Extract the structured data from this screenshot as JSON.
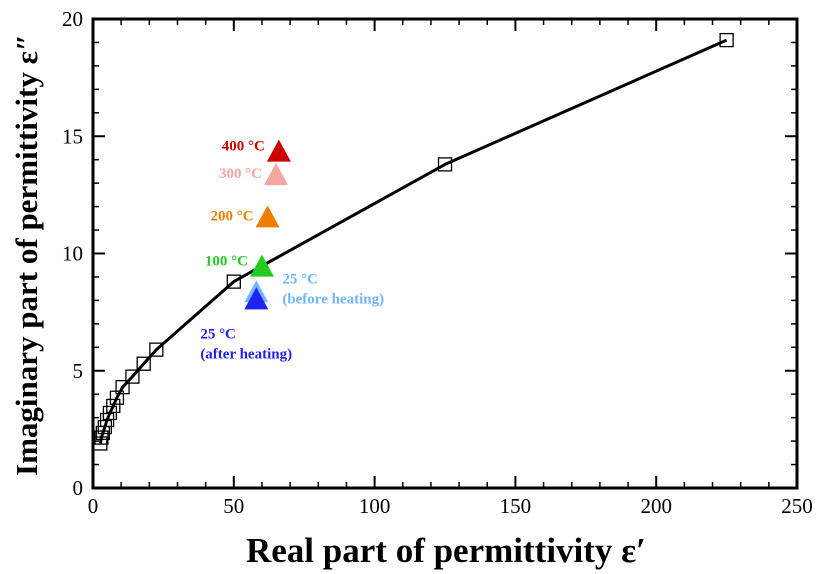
{
  "chart_data": {
    "type": "scatter",
    "xlabel": "Real part of permittivity ε′",
    "ylabel": "Imaginary part of permittivity ε″",
    "xlim": [
      0,
      250
    ],
    "ylim": [
      0,
      20
    ],
    "x_ticks": [
      0,
      50,
      100,
      150,
      200,
      250
    ],
    "y_ticks": [
      0,
      5,
      10,
      15,
      20
    ],
    "grid": false,
    "series": [
      {
        "marker": "open-square",
        "line": "solid",
        "color": "#000000",
        "points": [
          {
            "x": 2.6,
            "y": 1.9
          },
          {
            "x": 3.0,
            "y": 2.15
          },
          {
            "x": 3.5,
            "y": 2.35
          },
          {
            "x": 4.2,
            "y": 2.6
          },
          {
            "x": 5.0,
            "y": 2.9
          },
          {
            "x": 6.0,
            "y": 3.2
          },
          {
            "x": 7.2,
            "y": 3.5
          },
          {
            "x": 8.5,
            "y": 3.85
          },
          {
            "x": 10.5,
            "y": 4.3
          },
          {
            "x": 14.0,
            "y": 4.75
          },
          {
            "x": 18.0,
            "y": 5.3
          },
          {
            "x": 22.5,
            "y": 5.9
          },
          {
            "x": 50.0,
            "y": 8.8
          },
          {
            "x": 125.0,
            "y": 13.8
          },
          {
            "x": 225.0,
            "y": 19.1
          }
        ]
      },
      {
        "marker": "filled-triangle",
        "points": [
          {
            "x": 66,
            "y": 14.3,
            "color": "#cc0000",
            "label": "400 °C"
          },
          {
            "x": 65,
            "y": 13.3,
            "color": "#f4a6a0",
            "label": "300 °C"
          },
          {
            "x": 62,
            "y": 11.5,
            "color": "#f07d00",
            "label": "200 °C"
          },
          {
            "x": 60,
            "y": 9.4,
            "color": "#22cc22",
            "label": "100 °C"
          },
          {
            "x": 58,
            "y": 8.3,
            "color": "#6fb7ff",
            "label": "25 °C",
            "sublabel": "(before heating)"
          },
          {
            "x": 58,
            "y": 8.0,
            "color": "#2222ee",
            "label": "25 °C",
            "sublabel": "(after heating)"
          }
        ]
      }
    ]
  }
}
